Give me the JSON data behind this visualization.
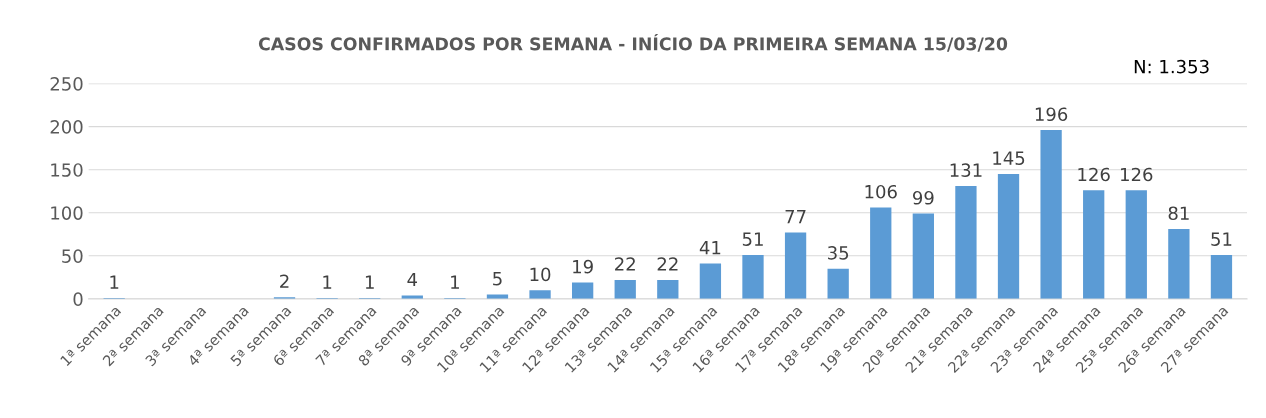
{
  "chart_data": {
    "type": "bar",
    "title": "CASOS CONFIRMADOS POR SEMANA - INÍCIO DA PRIMEIRA SEMANA 15/03/20",
    "categories": [
      "1ª semana",
      "2ª semana",
      "3ª semana",
      "4ª semana",
      "5ª semana",
      "6ª semana",
      "7ª semana",
      "8ª semana",
      "9ª semana",
      "10ª semana",
      "11ª semana",
      "12ª semana",
      "13ª semana",
      "14ª semana",
      "15ª semana",
      "16ª semana",
      "17ª semana",
      "18ª semana",
      "19ª semana",
      "20ª semana",
      "21ª semana",
      "22ª semana",
      "23ª semana",
      "24ª semana",
      "25ª semana",
      "26ª semana",
      "27ª semana"
    ],
    "values": [
      1,
      null,
      null,
      null,
      2,
      1,
      1,
      4,
      1,
      5,
      10,
      19,
      22,
      22,
      41,
      51,
      77,
      35,
      106,
      99,
      131,
      145,
      196,
      126,
      126,
      81,
      51
    ],
    "color": "#5b9bd5",
    "data_labels": true,
    "ylim": [
      0,
      250
    ],
    "yticks": [
      0,
      50,
      100,
      150,
      200,
      250
    ],
    "grid": "y",
    "annotations": [
      "N: 1.353"
    ]
  }
}
